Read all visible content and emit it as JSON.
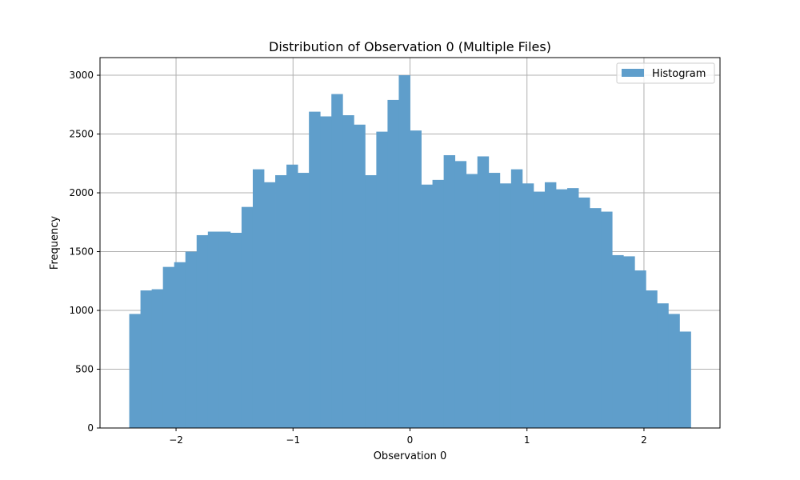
{
  "chart_data": {
    "type": "bar",
    "title": "Distribution of Observation 0 (Multiple Files)",
    "xlabel": "Observation 0",
    "ylabel": "Frequency",
    "xlim": [
      -2.65,
      2.65
    ],
    "ylim": [
      0,
      3150
    ],
    "xticks": [
      -2,
      -1,
      0,
      1,
      2
    ],
    "xtick_labels": [
      "−2",
      "−1",
      "0",
      "1",
      "2"
    ],
    "yticks": [
      0,
      500,
      1000,
      1500,
      2000,
      2500,
      3000
    ],
    "ytick_labels": [
      "0",
      "500",
      "1000",
      "1500",
      "2000",
      "2500",
      "3000"
    ],
    "grid": true,
    "legend_position": "top-right",
    "bar_color": "#5f9ecb",
    "series": [
      {
        "name": "Histogram",
        "bin_start": -2.4,
        "bin_width": 0.096,
        "values": [
          970,
          1170,
          1180,
          1370,
          1410,
          1500,
          1640,
          1670,
          1670,
          1660,
          1880,
          2200,
          2090,
          2150,
          2240,
          2170,
          2690,
          2650,
          2840,
          2660,
          2580,
          2150,
          2520,
          2790,
          3000,
          2530,
          2070,
          2110,
          2320,
          2270,
          2160,
          2310,
          2170,
          2080,
          2200,
          2080,
          2010,
          2090,
          2030,
          2040,
          1960,
          1870,
          1840,
          1470,
          1460,
          1340,
          1170,
          1060,
          970,
          820
        ]
      }
    ]
  }
}
